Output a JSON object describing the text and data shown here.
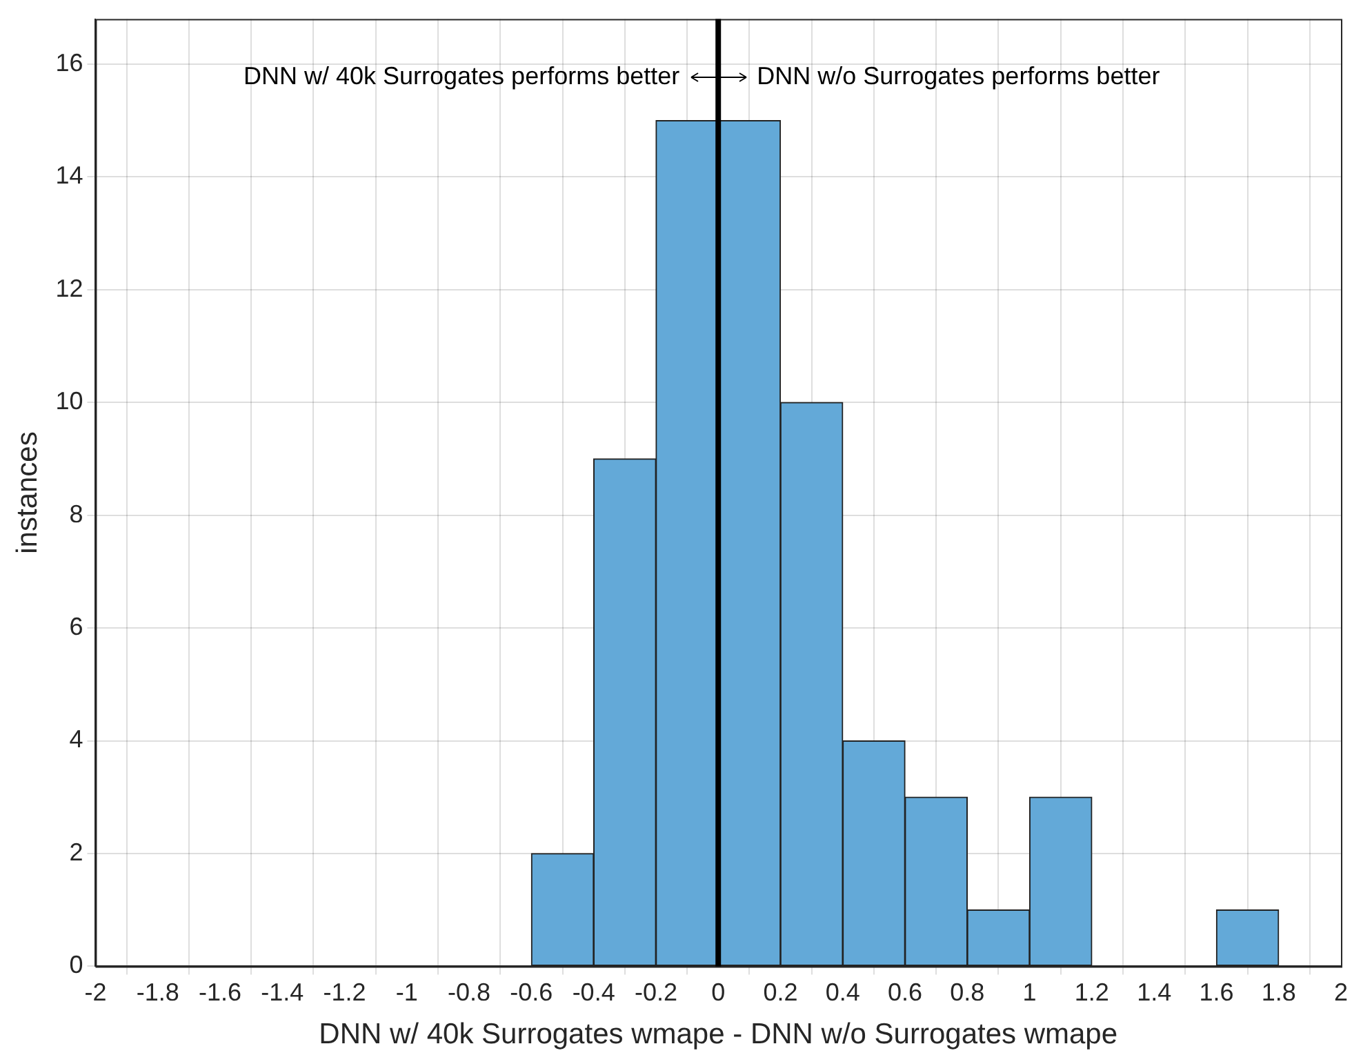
{
  "chart_data": {
    "type": "histogram",
    "xlabel": "DNN w/ 40k Surrogates wmape - DNN w/o Surrogates wmape",
    "ylabel": "instances",
    "bins": [
      -2,
      -1.8,
      -1.6,
      -1.4,
      -1.2,
      -1,
      -0.8,
      -0.6,
      -0.4,
      -0.2,
      0,
      0.2,
      0.4,
      0.6,
      0.8,
      1,
      1.2,
      1.4,
      1.6,
      1.8,
      2
    ],
    "values": [
      0,
      0,
      0,
      0,
      0,
      0,
      0,
      2,
      9,
      15,
      15,
      10,
      4,
      3,
      1,
      3,
      0,
      0,
      1,
      0
    ],
    "color": "#63a9d8",
    "xlim": [
      -2,
      2
    ],
    "xticks": [
      -2,
      -1.8,
      -1.6,
      -1.4,
      -1.2,
      -1,
      -0.8,
      -0.6,
      -0.4,
      -0.2,
      0,
      0.2,
      0.4,
      0.6,
      0.8,
      1,
      1.2,
      1.4,
      1.6,
      1.8,
      2
    ],
    "ylim": [
      0,
      16.8
    ],
    "yticks": [
      0,
      2,
      4,
      6,
      8,
      10,
      12,
      14,
      16
    ],
    "grid": true,
    "ref_lines": [
      {
        "axis": "x",
        "value": 0,
        "color": "#000000"
      }
    ],
    "annotations": [
      "DNN w/ 40k Surrogates performs better",
      "DNN w/o Surrogates performs better"
    ]
  }
}
